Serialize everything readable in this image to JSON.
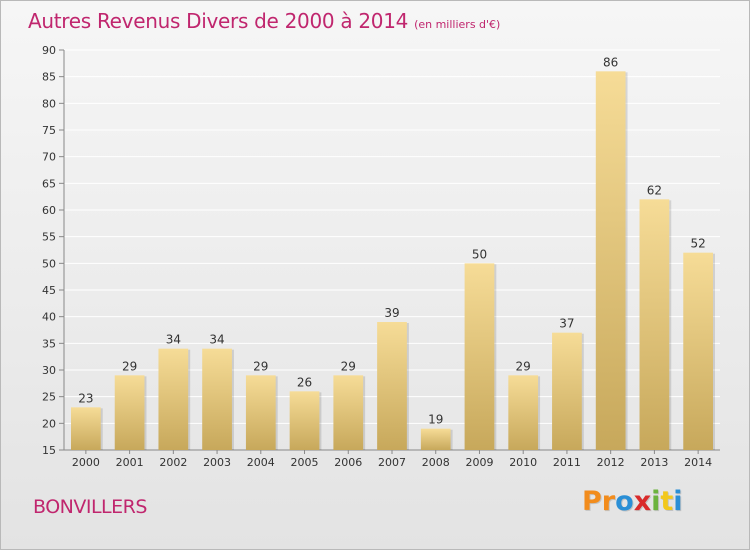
{
  "header": {
    "title": "Autres Revenus Divers de 2000 à 2014",
    "subtitle": "(en milliers d'€)"
  },
  "footer": {
    "commune": "BONVILLERS",
    "logo_text": "Proxiti",
    "logo_colors": [
      "#f28c1c",
      "#f28c1c",
      "#2a8fd6",
      "#d92a2a",
      "#6cb33e",
      "#f2c81c",
      "#2a8fd6"
    ]
  },
  "colors": {
    "title": "#c0266e",
    "bar_light": "#f6dc97",
    "bar_dark": "#c7a85b",
    "grid": "#ffffff"
  },
  "chart_data": {
    "type": "bar",
    "title": "Autres Revenus Divers de 2000 à 2014",
    "subtitle": "(en milliers d'€)",
    "categories": [
      "2000",
      "2001",
      "2002",
      "2003",
      "2004",
      "2005",
      "2006",
      "2007",
      "2008",
      "2009",
      "2010",
      "2011",
      "2012",
      "2013",
      "2014"
    ],
    "values": [
      23,
      29,
      34,
      34,
      29,
      26,
      29,
      39,
      19,
      50,
      29,
      37,
      86,
      62,
      52
    ],
    "ylim": [
      15,
      90
    ],
    "yticks": [
      15,
      20,
      25,
      30,
      35,
      40,
      45,
      50,
      55,
      60,
      65,
      70,
      75,
      80,
      85,
      90
    ],
    "grid": true,
    "legend": "none"
  }
}
